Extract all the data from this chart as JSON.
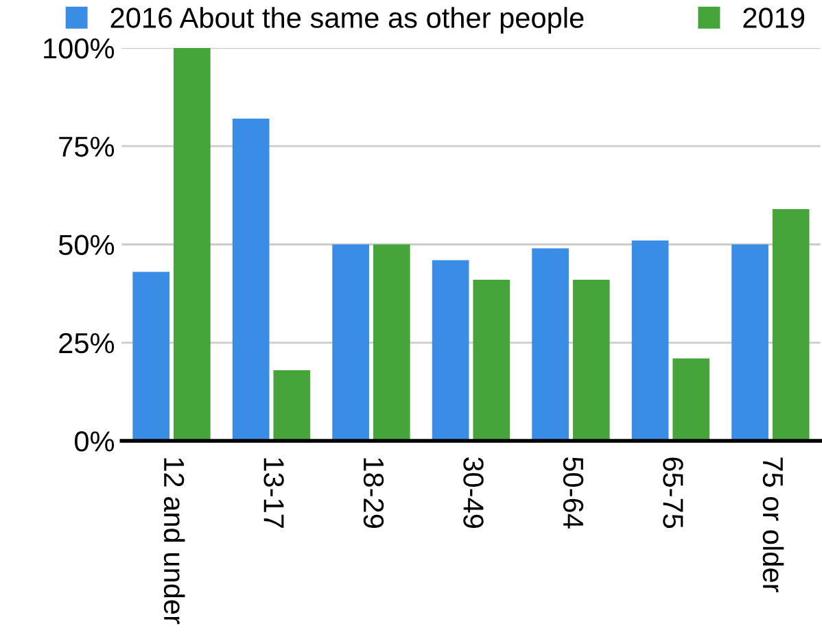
{
  "chart_data": {
    "type": "bar",
    "categories": [
      "12 and under",
      "13-17",
      "18-29",
      "30-49",
      "50-64",
      "65-75",
      "75 or older"
    ],
    "series": [
      {
        "name": "2016 About the same as other people",
        "color": "#3a8de4",
        "values": [
          43,
          82,
          50,
          46,
          49,
          51,
          50
        ]
      },
      {
        "name": "2019",
        "color": "#45a53a",
        "values": [
          100,
          18,
          50,
          41,
          41,
          21,
          59
        ]
      }
    ],
    "ylim": [
      0,
      100
    ],
    "yticks": [
      {
        "value": 0,
        "label": "0%"
      },
      {
        "value": 25,
        "label": "25%"
      },
      {
        "value": 50,
        "label": "50%"
      },
      {
        "value": 75,
        "label": "75%"
      },
      {
        "value": 100,
        "label": "100%"
      }
    ],
    "grid": "y",
    "legend": "top"
  }
}
